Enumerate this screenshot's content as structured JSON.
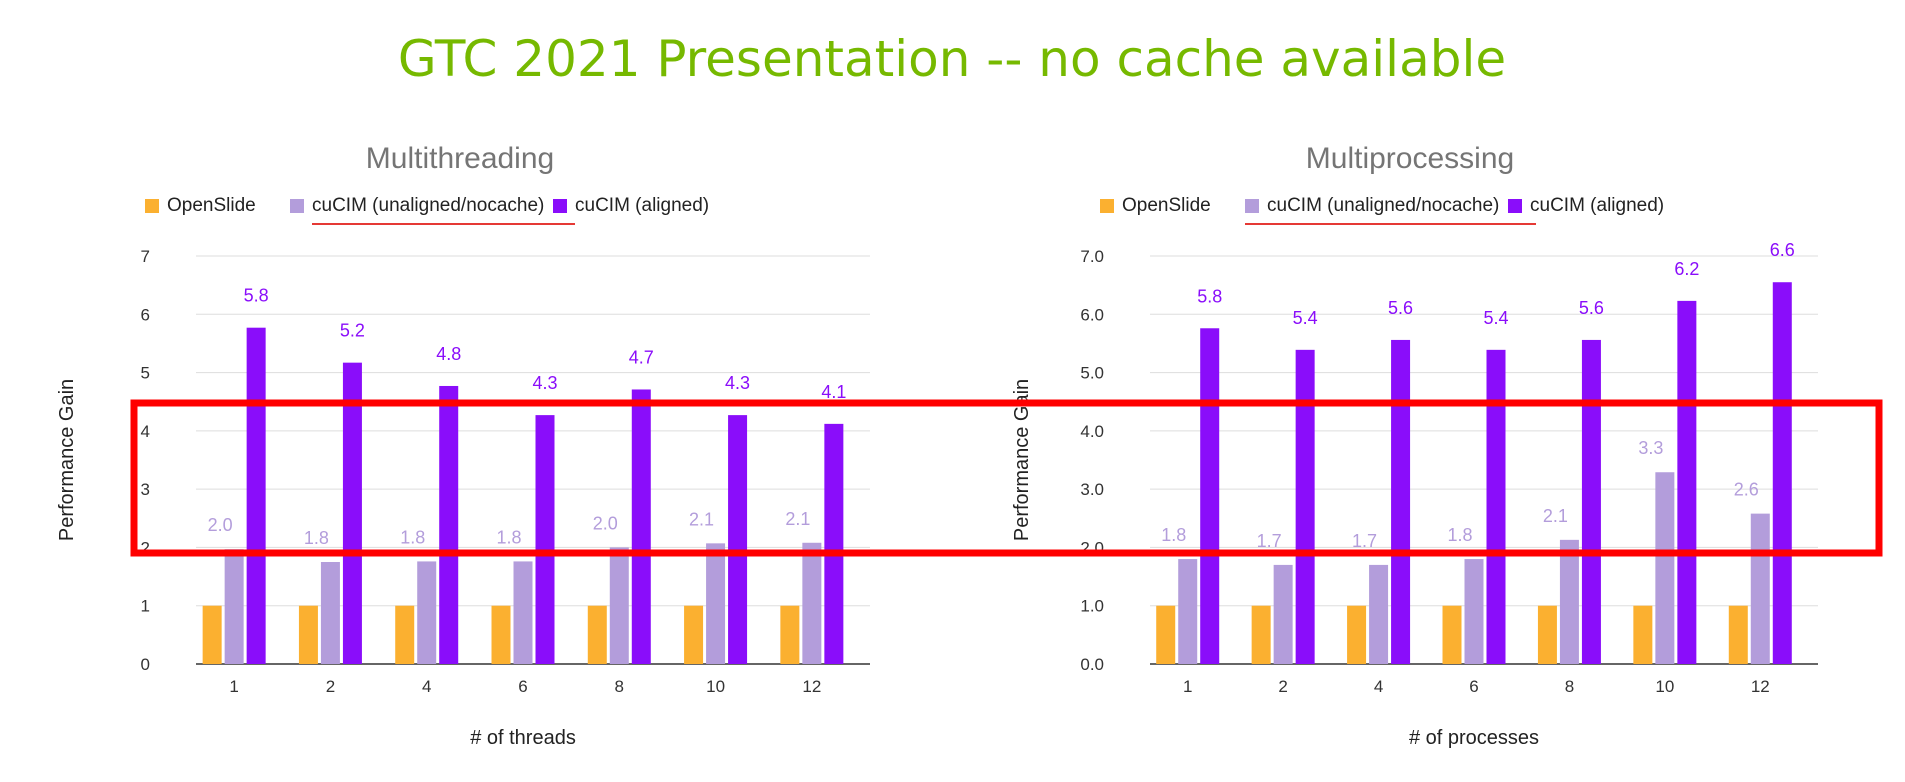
{
  "slide_title": "GTC 2021 Presentation -- no cache available",
  "colors": {
    "title": "#76b900",
    "openslide": "#fbb030",
    "unaligned": "#b39ddb",
    "aligned": "#8a0dfa",
    "highlight": "#ff0000",
    "underline": "#e53935"
  },
  "chart_data": [
    {
      "type": "bar",
      "title": "Multithreading",
      "xlabel": "# of threads",
      "ylabel": "Performance Gain",
      "categories": [
        "1",
        "2",
        "4",
        "6",
        "8",
        "10",
        "12"
      ],
      "ylim": [
        0,
        7
      ],
      "yticks": [
        "0",
        "1",
        "2",
        "3",
        "4",
        "5",
        "6",
        "7"
      ],
      "grid": true,
      "legend_position": "top",
      "series": [
        {
          "name": "OpenSlide",
          "values": [
            1,
            1,
            1,
            1,
            1,
            1,
            1
          ],
          "labels": [
            "",
            "",
            "",
            "",
            "",
            "",
            ""
          ]
        },
        {
          "name": "cuCIM (unaligned/nocache)",
          "values": [
            1.97,
            1.75,
            1.76,
            1.76,
            2.0,
            2.07,
            2.08
          ],
          "labels": [
            "2.0",
            "1.8",
            "1.8",
            "1.8",
            "2.0",
            "2.1",
            "2.1"
          ]
        },
        {
          "name": "cuCIM (aligned)",
          "values": [
            5.77,
            5.17,
            4.77,
            4.27,
            4.71,
            4.27,
            4.12
          ],
          "labels": [
            "5.8",
            "5.2",
            "4.8",
            "4.3",
            "4.7",
            "4.3",
            "4.1"
          ]
        }
      ]
    },
    {
      "type": "bar",
      "title": "Multiprocessing",
      "xlabel": "# of processes",
      "ylabel": "Performance Gain",
      "categories": [
        "1",
        "2",
        "4",
        "6",
        "8",
        "10",
        "12"
      ],
      "ylim": [
        0,
        7
      ],
      "yticks": [
        "0.0",
        "1.0",
        "2.0",
        "3.0",
        "4.0",
        "5.0",
        "6.0",
        "7.0"
      ],
      "grid": true,
      "legend_position": "top",
      "series": [
        {
          "name": "OpenSlide",
          "values": [
            1,
            1,
            1,
            1,
            1,
            1,
            1
          ],
          "labels": [
            "",
            "",
            "",
            "",
            "",
            "",
            ""
          ]
        },
        {
          "name": "cuCIM (unaligned/nocache)",
          "values": [
            1.8,
            1.7,
            1.7,
            1.8,
            2.13,
            3.29,
            2.58
          ],
          "labels": [
            "1.8",
            "1.7",
            "1.7",
            "1.8",
            "2.1",
            "3.3",
            "2.6"
          ]
        },
        {
          "name": "cuCIM (aligned)",
          "values": [
            5.76,
            5.39,
            5.56,
            5.39,
            5.56,
            6.23,
            6.55
          ],
          "labels": [
            "5.8",
            "5.4",
            "5.6",
            "5.4",
            "5.6",
            "6.2",
            "6.6"
          ]
        }
      ]
    }
  ]
}
